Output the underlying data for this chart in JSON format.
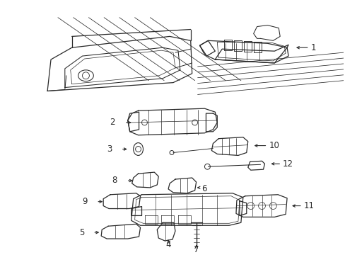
{
  "bg_color": "#ffffff",
  "line_color": "#2a2a2a",
  "lw_main": 0.9,
  "lw_detail": 0.6,
  "label_fs": 8.5,
  "figsize": [
    4.89,
    3.6
  ],
  "dpi": 100
}
